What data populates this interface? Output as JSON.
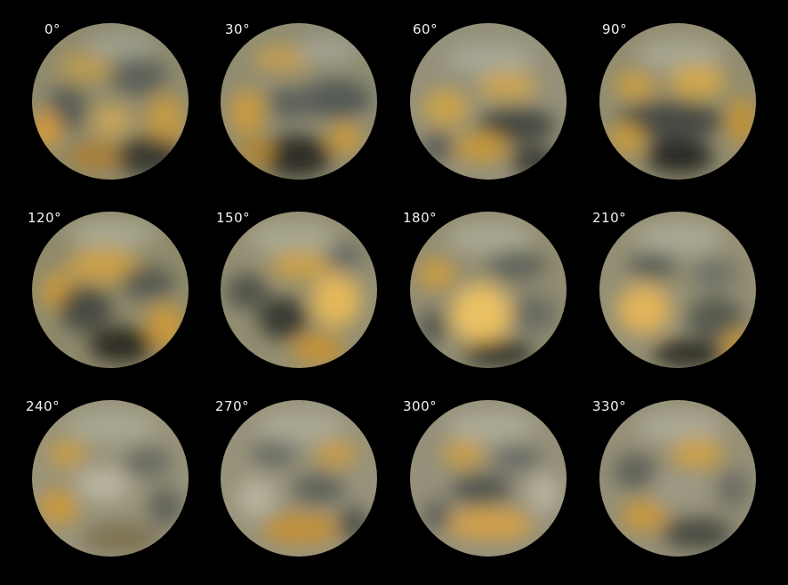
{
  "views": [
    {
      "label": "0°"
    },
    {
      "label": "30°"
    },
    {
      "label": "60°"
    },
    {
      "label": "90°"
    },
    {
      "label": "120°"
    },
    {
      "label": "150°"
    },
    {
      "label": "180°"
    },
    {
      "label": "210°"
    },
    {
      "label": "240°"
    },
    {
      "label": "270°"
    },
    {
      "label": "300°"
    },
    {
      "label": "330°"
    }
  ]
}
